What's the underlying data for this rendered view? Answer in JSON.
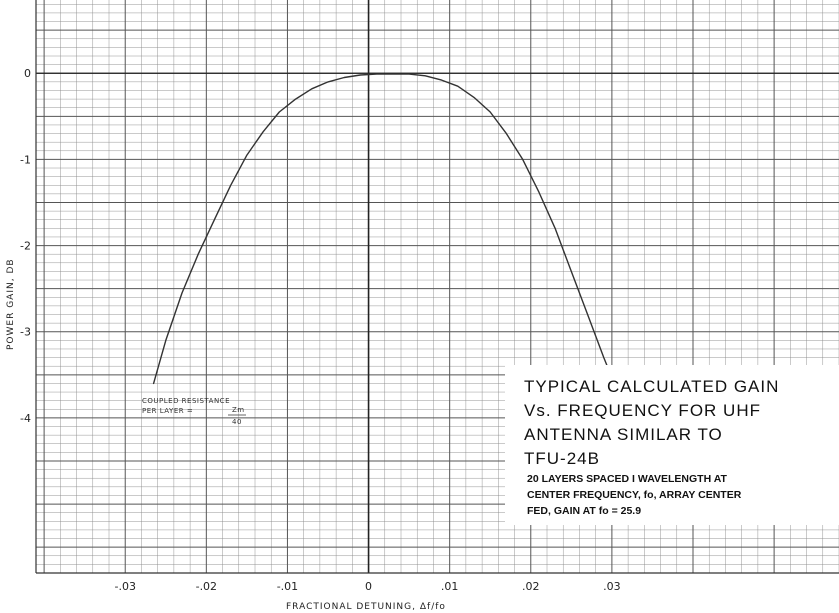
{
  "chart_data": {
    "type": "line",
    "title_lines": [
      "TYPICAL CALCULATED GAIN",
      "Vs. FREQUENCY FOR UHF",
      "ANTENNA SIMILAR TO",
      "TFU-24B"
    ],
    "subtitle_lines": [
      "20 LAYERS SPACED I WAVELENGTH AT",
      "CENTER FREQUENCY, fo, ARRAY CENTER",
      "FED, GAIN AT fo = 25.9"
    ],
    "annotation": {
      "line1": "COUPLED RESISTANCE",
      "line2_prefix": "PER LAYER =",
      "numerator": "Zm",
      "denominator": "40"
    },
    "xlabel": "FRACTIONAL DETUNING, Δf/fo",
    "ylabel": "POWER GAIN, DB",
    "xlim": [
      -0.041,
      0.058
    ],
    "ylim": [
      -5.8,
      0.85
    ],
    "x_ticks": [
      {
        "value": -0.03,
        "label": "-.03"
      },
      {
        "value": -0.02,
        "label": "-.02"
      },
      {
        "value": -0.01,
        "label": "-.01"
      },
      {
        "value": 0.0,
        "label": "0"
      },
      {
        "value": 0.01,
        "label": ".01"
      },
      {
        "value": 0.02,
        "label": ".02"
      },
      {
        "value": 0.03,
        "label": ".03"
      }
    ],
    "y_ticks": [
      {
        "value": 0,
        "label": "0"
      },
      {
        "value": -1,
        "label": "-1"
      },
      {
        "value": -2,
        "label": "-2"
      },
      {
        "value": -3,
        "label": "-3"
      },
      {
        "value": -4,
        "label": "-4"
      }
    ],
    "grid": true,
    "series": [
      {
        "color": "#333333",
        "x": [
          -0.0265,
          -0.025,
          -0.023,
          -0.021,
          -0.019,
          -0.017,
          -0.015,
          -0.013,
          -0.011,
          -0.009,
          -0.007,
          -0.005,
          -0.003,
          -0.001,
          0.001,
          0.003,
          0.005,
          0.007,
          0.009,
          0.011,
          0.013,
          0.015,
          0.017,
          0.019,
          0.021,
          0.023,
          0.025,
          0.027,
          0.029,
          0.0305
        ],
        "y": [
          -3.6,
          -3.1,
          -2.55,
          -2.1,
          -1.7,
          -1.3,
          -0.95,
          -0.68,
          -0.45,
          -0.3,
          -0.18,
          -0.1,
          -0.05,
          -0.02,
          -0.01,
          -0.01,
          -0.01,
          -0.03,
          -0.08,
          -0.15,
          -0.28,
          -0.45,
          -0.7,
          -1.0,
          -1.38,
          -1.8,
          -2.3,
          -2.8,
          -3.3,
          -3.65
        ]
      }
    ]
  }
}
